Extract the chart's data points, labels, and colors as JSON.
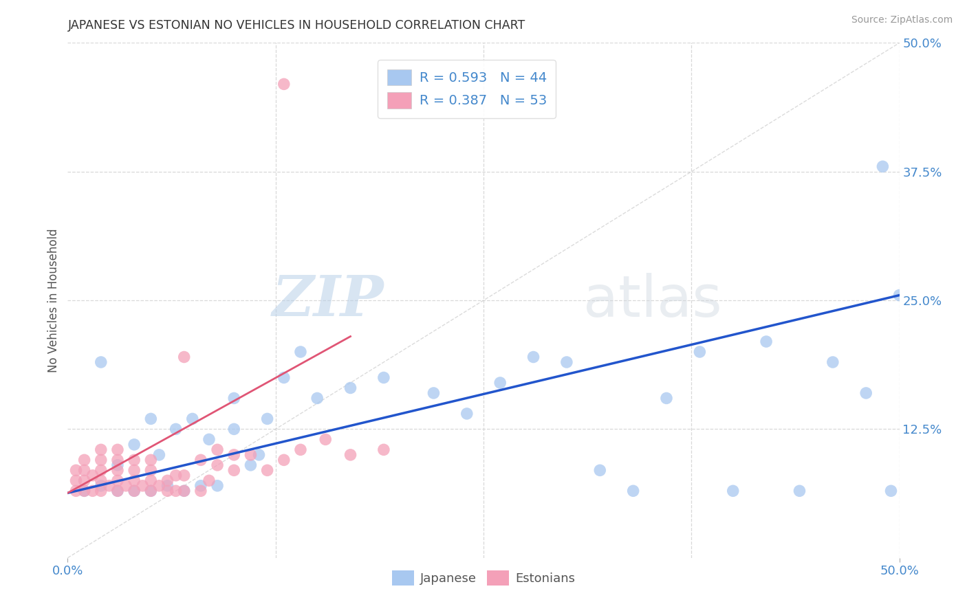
{
  "title": "JAPANESE VS ESTONIAN NO VEHICLES IN HOUSEHOLD CORRELATION CHART",
  "source": "Source: ZipAtlas.com",
  "ylabel": "No Vehicles in Household",
  "xlim": [
    0.0,
    0.5
  ],
  "ylim": [
    0.0,
    0.5
  ],
  "watermark_zip": "ZIP",
  "watermark_atlas": "atlas",
  "blue_color": "#a8c8f0",
  "pink_color": "#f4a0b8",
  "blue_line_color": "#2255cc",
  "pink_line_color": "#e05575",
  "diag_color": "#cccccc",
  "background_color": "#ffffff",
  "grid_color": "#d8d8d8",
  "tick_color": "#4488cc",
  "title_color": "#333333",
  "source_color": "#999999",
  "ylabel_color": "#555555",
  "ytick_labels_right": [
    "12.5%",
    "25.0%",
    "37.5%",
    "50.0%"
  ],
  "ytick_positions": [
    0.125,
    0.25,
    0.375,
    0.5
  ],
  "xtick_labels": [
    "0.0%",
    "50.0%"
  ],
  "xtick_positions": [
    0.0,
    0.5
  ],
  "jp_blue_line_x": [
    0.0,
    0.5
  ],
  "jp_blue_line_y": [
    0.063,
    0.255
  ],
  "et_pink_line_x": [
    0.0,
    0.17
  ],
  "et_pink_line_y": [
    0.063,
    0.215
  ],
  "japanese_x": [
    0.01,
    0.02,
    0.02,
    0.03,
    0.03,
    0.04,
    0.04,
    0.05,
    0.05,
    0.055,
    0.06,
    0.065,
    0.07,
    0.075,
    0.08,
    0.085,
    0.09,
    0.1,
    0.1,
    0.11,
    0.115,
    0.12,
    0.13,
    0.14,
    0.15,
    0.17,
    0.19,
    0.22,
    0.24,
    0.26,
    0.28,
    0.3,
    0.32,
    0.34,
    0.36,
    0.38,
    0.4,
    0.42,
    0.44,
    0.46,
    0.48,
    0.49,
    0.495,
    0.5
  ],
  "japanese_y": [
    0.065,
    0.07,
    0.19,
    0.065,
    0.09,
    0.065,
    0.11,
    0.065,
    0.135,
    0.1,
    0.07,
    0.125,
    0.065,
    0.135,
    0.07,
    0.115,
    0.07,
    0.125,
    0.155,
    0.09,
    0.1,
    0.135,
    0.175,
    0.2,
    0.155,
    0.165,
    0.175,
    0.16,
    0.14,
    0.17,
    0.195,
    0.19,
    0.085,
    0.065,
    0.155,
    0.2,
    0.065,
    0.21,
    0.065,
    0.19,
    0.16,
    0.38,
    0.065,
    0.255
  ],
  "estonian_x": [
    0.005,
    0.005,
    0.005,
    0.01,
    0.01,
    0.01,
    0.01,
    0.015,
    0.015,
    0.02,
    0.02,
    0.02,
    0.02,
    0.02,
    0.025,
    0.03,
    0.03,
    0.03,
    0.03,
    0.03,
    0.035,
    0.04,
    0.04,
    0.04,
    0.04,
    0.045,
    0.05,
    0.05,
    0.05,
    0.05,
    0.055,
    0.06,
    0.06,
    0.065,
    0.065,
    0.07,
    0.07,
    0.07,
    0.08,
    0.08,
    0.085,
    0.09,
    0.09,
    0.1,
    0.1,
    0.11,
    0.12,
    0.13,
    0.14,
    0.155,
    0.17,
    0.19,
    0.13
  ],
  "estonian_y": [
    0.065,
    0.075,
    0.085,
    0.065,
    0.075,
    0.085,
    0.095,
    0.065,
    0.08,
    0.065,
    0.075,
    0.085,
    0.095,
    0.105,
    0.07,
    0.065,
    0.075,
    0.085,
    0.095,
    0.105,
    0.07,
    0.065,
    0.075,
    0.085,
    0.095,
    0.07,
    0.065,
    0.075,
    0.085,
    0.095,
    0.07,
    0.065,
    0.075,
    0.065,
    0.08,
    0.195,
    0.065,
    0.08,
    0.065,
    0.095,
    0.075,
    0.09,
    0.105,
    0.085,
    0.1,
    0.1,
    0.085,
    0.095,
    0.105,
    0.115,
    0.1,
    0.105,
    0.46
  ]
}
